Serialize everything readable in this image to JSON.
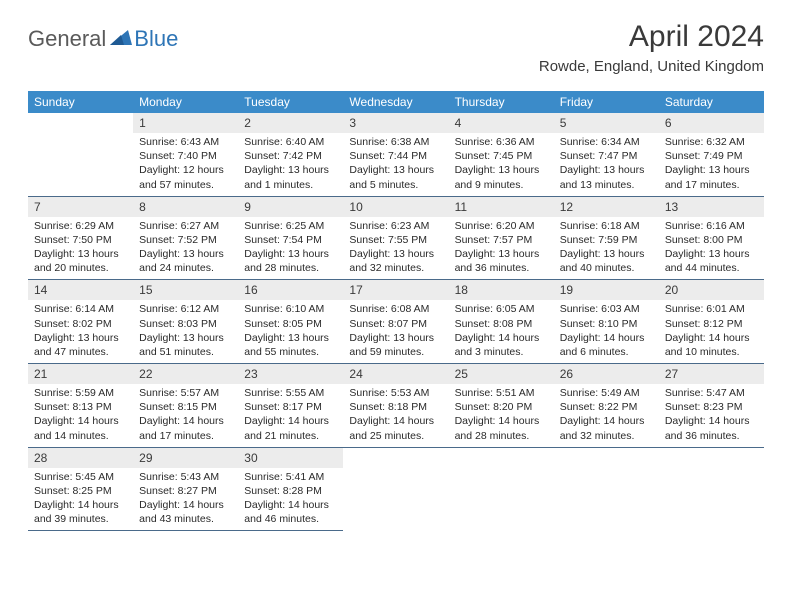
{
  "brand": {
    "part1": "General",
    "part2": "Blue"
  },
  "title": "April 2024",
  "location": "Rowde, England, United Kingdom",
  "day_names": [
    "Sunday",
    "Monday",
    "Tuesday",
    "Wednesday",
    "Thursday",
    "Friday",
    "Saturday"
  ],
  "colors": {
    "header_bg": "#3b8bc9",
    "date_bg": "#ececec",
    "border": "#4a6a8a",
    "brand_blue": "#2e75b6",
    "text_dark": "#3a3a3a"
  },
  "typography": {
    "title_fontsize": 30,
    "location_fontsize": 15,
    "dayheader_fontsize": 12,
    "date_fontsize": 12,
    "body_fontsize": 10.5
  },
  "weeks": [
    [
      {
        "date": "",
        "sunrise": "",
        "sunset": "",
        "daylight": ""
      },
      {
        "date": "1",
        "sunrise": "6:43 AM",
        "sunset": "7:40 PM",
        "daylight": "12 hours and 57 minutes."
      },
      {
        "date": "2",
        "sunrise": "6:40 AM",
        "sunset": "7:42 PM",
        "daylight": "13 hours and 1 minutes."
      },
      {
        "date": "3",
        "sunrise": "6:38 AM",
        "sunset": "7:44 PM",
        "daylight": "13 hours and 5 minutes."
      },
      {
        "date": "4",
        "sunrise": "6:36 AM",
        "sunset": "7:45 PM",
        "daylight": "13 hours and 9 minutes."
      },
      {
        "date": "5",
        "sunrise": "6:34 AM",
        "sunset": "7:47 PM",
        "daylight": "13 hours and 13 minutes."
      },
      {
        "date": "6",
        "sunrise": "6:32 AM",
        "sunset": "7:49 PM",
        "daylight": "13 hours and 17 minutes."
      }
    ],
    [
      {
        "date": "7",
        "sunrise": "6:29 AM",
        "sunset": "7:50 PM",
        "daylight": "13 hours and 20 minutes."
      },
      {
        "date": "8",
        "sunrise": "6:27 AM",
        "sunset": "7:52 PM",
        "daylight": "13 hours and 24 minutes."
      },
      {
        "date": "9",
        "sunrise": "6:25 AM",
        "sunset": "7:54 PM",
        "daylight": "13 hours and 28 minutes."
      },
      {
        "date": "10",
        "sunrise": "6:23 AM",
        "sunset": "7:55 PM",
        "daylight": "13 hours and 32 minutes."
      },
      {
        "date": "11",
        "sunrise": "6:20 AM",
        "sunset": "7:57 PM",
        "daylight": "13 hours and 36 minutes."
      },
      {
        "date": "12",
        "sunrise": "6:18 AM",
        "sunset": "7:59 PM",
        "daylight": "13 hours and 40 minutes."
      },
      {
        "date": "13",
        "sunrise": "6:16 AM",
        "sunset": "8:00 PM",
        "daylight": "13 hours and 44 minutes."
      }
    ],
    [
      {
        "date": "14",
        "sunrise": "6:14 AM",
        "sunset": "8:02 PM",
        "daylight": "13 hours and 47 minutes."
      },
      {
        "date": "15",
        "sunrise": "6:12 AM",
        "sunset": "8:03 PM",
        "daylight": "13 hours and 51 minutes."
      },
      {
        "date": "16",
        "sunrise": "6:10 AM",
        "sunset": "8:05 PM",
        "daylight": "13 hours and 55 minutes."
      },
      {
        "date": "17",
        "sunrise": "6:08 AM",
        "sunset": "8:07 PM",
        "daylight": "13 hours and 59 minutes."
      },
      {
        "date": "18",
        "sunrise": "6:05 AM",
        "sunset": "8:08 PM",
        "daylight": "14 hours and 3 minutes."
      },
      {
        "date": "19",
        "sunrise": "6:03 AM",
        "sunset": "8:10 PM",
        "daylight": "14 hours and 6 minutes."
      },
      {
        "date": "20",
        "sunrise": "6:01 AM",
        "sunset": "8:12 PM",
        "daylight": "14 hours and 10 minutes."
      }
    ],
    [
      {
        "date": "21",
        "sunrise": "5:59 AM",
        "sunset": "8:13 PM",
        "daylight": "14 hours and 14 minutes."
      },
      {
        "date": "22",
        "sunrise": "5:57 AM",
        "sunset": "8:15 PM",
        "daylight": "14 hours and 17 minutes."
      },
      {
        "date": "23",
        "sunrise": "5:55 AM",
        "sunset": "8:17 PM",
        "daylight": "14 hours and 21 minutes."
      },
      {
        "date": "24",
        "sunrise": "5:53 AM",
        "sunset": "8:18 PM",
        "daylight": "14 hours and 25 minutes."
      },
      {
        "date": "25",
        "sunrise": "5:51 AM",
        "sunset": "8:20 PM",
        "daylight": "14 hours and 28 minutes."
      },
      {
        "date": "26",
        "sunrise": "5:49 AM",
        "sunset": "8:22 PM",
        "daylight": "14 hours and 32 minutes."
      },
      {
        "date": "27",
        "sunrise": "5:47 AM",
        "sunset": "8:23 PM",
        "daylight": "14 hours and 36 minutes."
      }
    ],
    [
      {
        "date": "28",
        "sunrise": "5:45 AM",
        "sunset": "8:25 PM",
        "daylight": "14 hours and 39 minutes."
      },
      {
        "date": "29",
        "sunrise": "5:43 AM",
        "sunset": "8:27 PM",
        "daylight": "14 hours and 43 minutes."
      },
      {
        "date": "30",
        "sunrise": "5:41 AM",
        "sunset": "8:28 PM",
        "daylight": "14 hours and 46 minutes."
      },
      {
        "date": "",
        "sunrise": "",
        "sunset": "",
        "daylight": ""
      },
      {
        "date": "",
        "sunrise": "",
        "sunset": "",
        "daylight": ""
      },
      {
        "date": "",
        "sunrise": "",
        "sunset": "",
        "daylight": ""
      },
      {
        "date": "",
        "sunrise": "",
        "sunset": "",
        "daylight": ""
      }
    ]
  ]
}
